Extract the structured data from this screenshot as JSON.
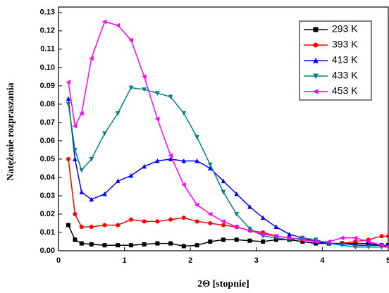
{
  "chart_data": {
    "type": "line",
    "x_label": "2Θ [stopnie]",
    "y_label": "Natężenie rozpraszania",
    "xlim": [
      0,
      5
    ],
    "ylim": [
      0,
      0.133
    ],
    "xticks": [
      0,
      1,
      2,
      3,
      4,
      5
    ],
    "yticks": [
      {
        "value": 0,
        "label": "0.00"
      },
      {
        "value": 0.01,
        "label": "0.01"
      },
      {
        "value": 0.02,
        "label": "0.02"
      },
      {
        "value": 0.03,
        "label": "0.03"
      },
      {
        "value": 0.04,
        "label": "0.04"
      },
      {
        "value": 0.05,
        "label": "0.05"
      },
      {
        "value": 0.06,
        "label": "0.06"
      },
      {
        "value": 0.07,
        "label": "0.07"
      },
      {
        "value": 0.08,
        "label": "0.08"
      },
      {
        "value": 0.09,
        "label": "0.09"
      },
      {
        "value": 0.1,
        "label": "0.10"
      },
      {
        "value": 0.11,
        "label": "0.11"
      },
      {
        "value": 0.12,
        "label": "0.12"
      },
      {
        "value": 0.13,
        "label": "0.13"
      }
    ],
    "legend": "top-right",
    "x": [
      0.15,
      0.25,
      0.35,
      0.5,
      0.7,
      0.9,
      1.1,
      1.3,
      1.5,
      1.7,
      1.9,
      2.1,
      2.3,
      2.5,
      2.7,
      2.9,
      3.1,
      3.3,
      3.5,
      3.7,
      3.9,
      4.1,
      4.3,
      4.5,
      4.7,
      4.9,
      5.0
    ],
    "series": [
      {
        "name": "293 K",
        "color": "#000000",
        "marker": "square",
        "values": [
          0.014,
          0.006,
          0.004,
          0.0035,
          0.003,
          0.003,
          0.003,
          0.0035,
          0.004,
          0.004,
          0.0025,
          0.003,
          0.005,
          0.006,
          0.006,
          0.0055,
          0.005,
          0.006,
          0.006,
          0.005,
          0.004,
          0.004,
          0.004,
          0.004,
          0.004,
          0.003,
          0.003
        ]
      },
      {
        "name": "393 K",
        "color": "#ff0000",
        "marker": "circle",
        "values": [
          0.05,
          0.02,
          0.013,
          0.013,
          0.014,
          0.014,
          0.017,
          0.016,
          0.016,
          0.017,
          0.018,
          0.016,
          0.015,
          0.014,
          0.013,
          0.011,
          0.01,
          0.008,
          0.007,
          0.006,
          0.005,
          0.004,
          0.004,
          0.005,
          0.006,
          0.008,
          0.008
        ]
      },
      {
        "name": "413 K",
        "color": "#0000ff",
        "marker": "triangle-up",
        "values": [
          0.083,
          0.05,
          0.032,
          0.028,
          0.031,
          0.038,
          0.041,
          0.046,
          0.049,
          0.05,
          0.049,
          0.049,
          0.045,
          0.038,
          0.031,
          0.024,
          0.018,
          0.013,
          0.009,
          0.007,
          0.005,
          0.004,
          0.004,
          0.003,
          0.003,
          0.003,
          0.003
        ]
      },
      {
        "name": "433 K",
        "color": "#008080",
        "marker": "triangle-down",
        "values": [
          0.08,
          0.055,
          0.044,
          0.05,
          0.064,
          0.075,
          0.089,
          0.088,
          0.086,
          0.084,
          0.075,
          0.062,
          0.047,
          0.032,
          0.02,
          0.012,
          0.008,
          0.007,
          0.006,
          0.007,
          0.006,
          0.004,
          0.003,
          0.002,
          0.002,
          0.002,
          0.002
        ]
      },
      {
        "name": "453 K",
        "color": "#ff00ff",
        "marker": "triangle-left",
        "values": [
          0.092,
          0.068,
          0.075,
          0.105,
          0.125,
          0.123,
          0.115,
          0.095,
          0.072,
          0.052,
          0.036,
          0.025,
          0.02,
          0.016,
          0.013,
          0.011,
          0.009,
          0.008,
          0.007,
          0.006,
          0.005,
          0.005,
          0.007,
          0.007,
          0.005,
          0.003,
          0.002
        ]
      }
    ]
  }
}
